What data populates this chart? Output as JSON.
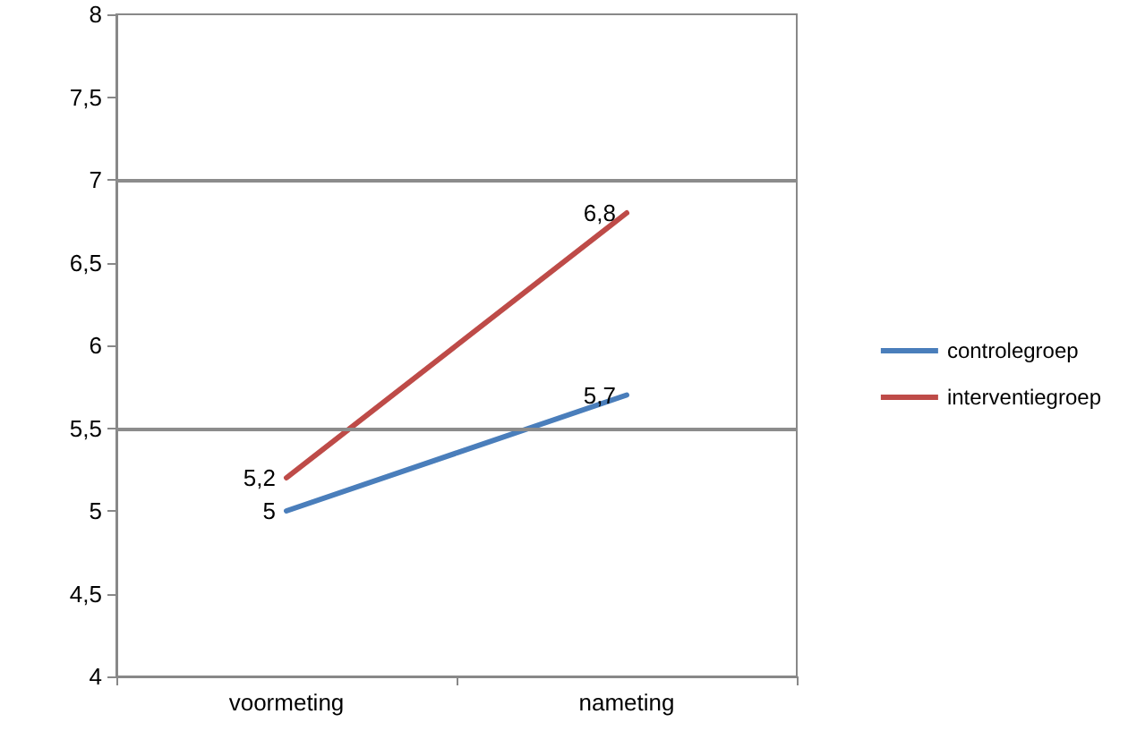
{
  "chart_data": {
    "type": "line",
    "categories": [
      "voormeting",
      "nameting"
    ],
    "series": [
      {
        "name": "controlegroep",
        "color": "#4a7ebb",
        "values": [
          5,
          5.7
        ],
        "value_labels": [
          "5",
          "5,7"
        ]
      },
      {
        "name": "interventiegroep",
        "color": "#be4b48",
        "values": [
          5.2,
          6.8
        ],
        "value_labels": [
          "5,2",
          "6,8"
        ]
      }
    ],
    "ylim": [
      4,
      8
    ],
    "yticks": [
      4,
      {
        "value": 4.5,
        "label": "4,5"
      },
      5,
      {
        "value": 5.5,
        "label": "5,5"
      },
      6,
      {
        "value": 6.5,
        "label": "6,5"
      },
      7,
      {
        "value": 7.5,
        "label": "7,5"
      },
      8
    ],
    "ref_lines": [
      {
        "axis": "y",
        "value": 5.5,
        "color": "#8c8c8c"
      },
      {
        "axis": "y",
        "value": 7,
        "color": "#8c8c8c"
      }
    ],
    "grid": false,
    "legend": "right",
    "marker": "none",
    "line_style": "solid"
  }
}
